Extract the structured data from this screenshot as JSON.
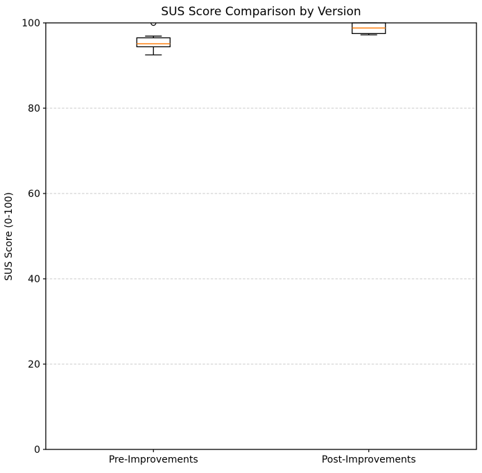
{
  "title": "SUS Score Comparison by Version",
  "chart_data": {
    "type": "boxplot",
    "title": "SUS Score Comparison by Version",
    "xlabel": "",
    "ylabel": "SUS Score (0-100)",
    "categories": [
      "Pre-Improvements",
      "Post-Improvements"
    ],
    "ylim": [
      0,
      100
    ],
    "yticks": [
      0,
      20,
      40,
      60,
      80,
      100
    ],
    "grid": {
      "axis": "y",
      "style": "dashed",
      "color": "#c9c9c9"
    },
    "legend": "none",
    "median_color": "#ff7f0e",
    "box_edge_color": "#000000",
    "series": [
      {
        "name": "Pre-Improvements",
        "whisker_low": 92.5,
        "q1": 94.4,
        "median": 95.1,
        "q3": 96.5,
        "whisker_high": 96.9,
        "outliers": [
          100
        ]
      },
      {
        "name": "Post-Improvements",
        "whisker_low": 97.2,
        "q1": 97.5,
        "median": 98.8,
        "q3": 100,
        "whisker_high": 100,
        "outliers": []
      }
    ]
  }
}
